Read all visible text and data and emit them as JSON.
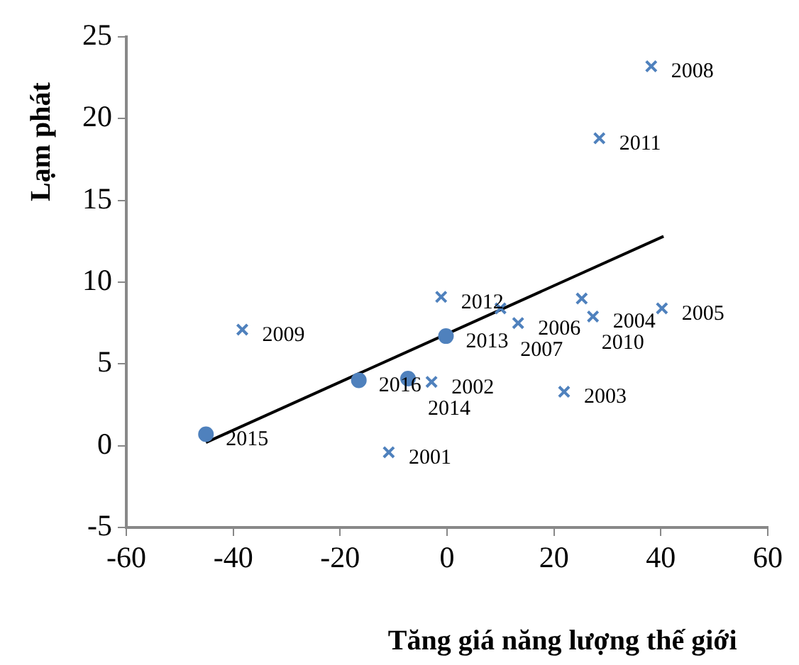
{
  "chart_data": {
    "type": "scatter",
    "xlabel": "Tăng giá năng lượng thế giới",
    "ylabel": "Lạm phát",
    "xlim": [
      -60,
      60
    ],
    "xticks": [
      -60,
      -40,
      -20,
      0,
      20,
      40,
      60
    ],
    "ylim": [
      -5,
      25
    ],
    "yticks": [
      -5,
      0,
      5,
      10,
      15,
      20,
      25
    ],
    "grid": false,
    "legend": false,
    "series": [
      {
        "color": "#4f81bd",
        "marker": "cross",
        "x": [
          -10.9,
          -2.9,
          21.9,
          27.3,
          40.2,
          13.3,
          10.0,
          38.2,
          -38.3,
          25.2,
          28.5,
          -1.1
        ],
        "values": [
          -0.4,
          3.9,
          3.3,
          7.9,
          8.4,
          7.5,
          8.4,
          23.2,
          7.1,
          9.0,
          18.8,
          9.1
        ]
      },
      {
        "color": "#4f81bd",
        "marker": "circle",
        "x": [
          -0.2,
          -7.3,
          -45.1,
          -16.5
        ],
        "values": [
          6.7,
          4.1,
          0.7,
          4.0
        ]
      },
      {
        "type": "line",
        "color": "#000000",
        "marker": "none",
        "x": [
          -45.1,
          40.5
        ],
        "values": [
          0.2,
          12.8
        ]
      }
    ],
    "annotations": [
      {
        "text": "2001",
        "x": -10.9,
        "y": -0.4
      },
      {
        "text": "2002",
        "x": -2.9,
        "y": 3.9
      },
      {
        "text": "2003",
        "x": 21.9,
        "y": 3.3
      },
      {
        "text": "2004",
        "x": 27.3,
        "y": 7.9
      },
      {
        "text": "2005",
        "x": 40.2,
        "y": 8.4
      },
      {
        "text": "2006",
        "x": 13.3,
        "y": 7.5
      },
      {
        "text": "2007",
        "x": 10.0,
        "y": 8.4
      },
      {
        "text": "2008",
        "x": 38.2,
        "y": 23.2
      },
      {
        "text": "2009",
        "x": -38.3,
        "y": 7.1
      },
      {
        "text": "2010",
        "x": 25.2,
        "y": 9.0
      },
      {
        "text": "2011",
        "x": 28.5,
        "y": 18.8
      },
      {
        "text": "2012",
        "x": -1.1,
        "y": 9.1
      },
      {
        "text": "2013",
        "x": -0.2,
        "y": 6.7
      },
      {
        "text": "2014",
        "x": -7.3,
        "y": 4.1
      },
      {
        "text": "2015",
        "x": -45.1,
        "y": 0.7
      },
      {
        "text": "2016",
        "x": -16.5,
        "y": 4.0
      }
    ]
  }
}
